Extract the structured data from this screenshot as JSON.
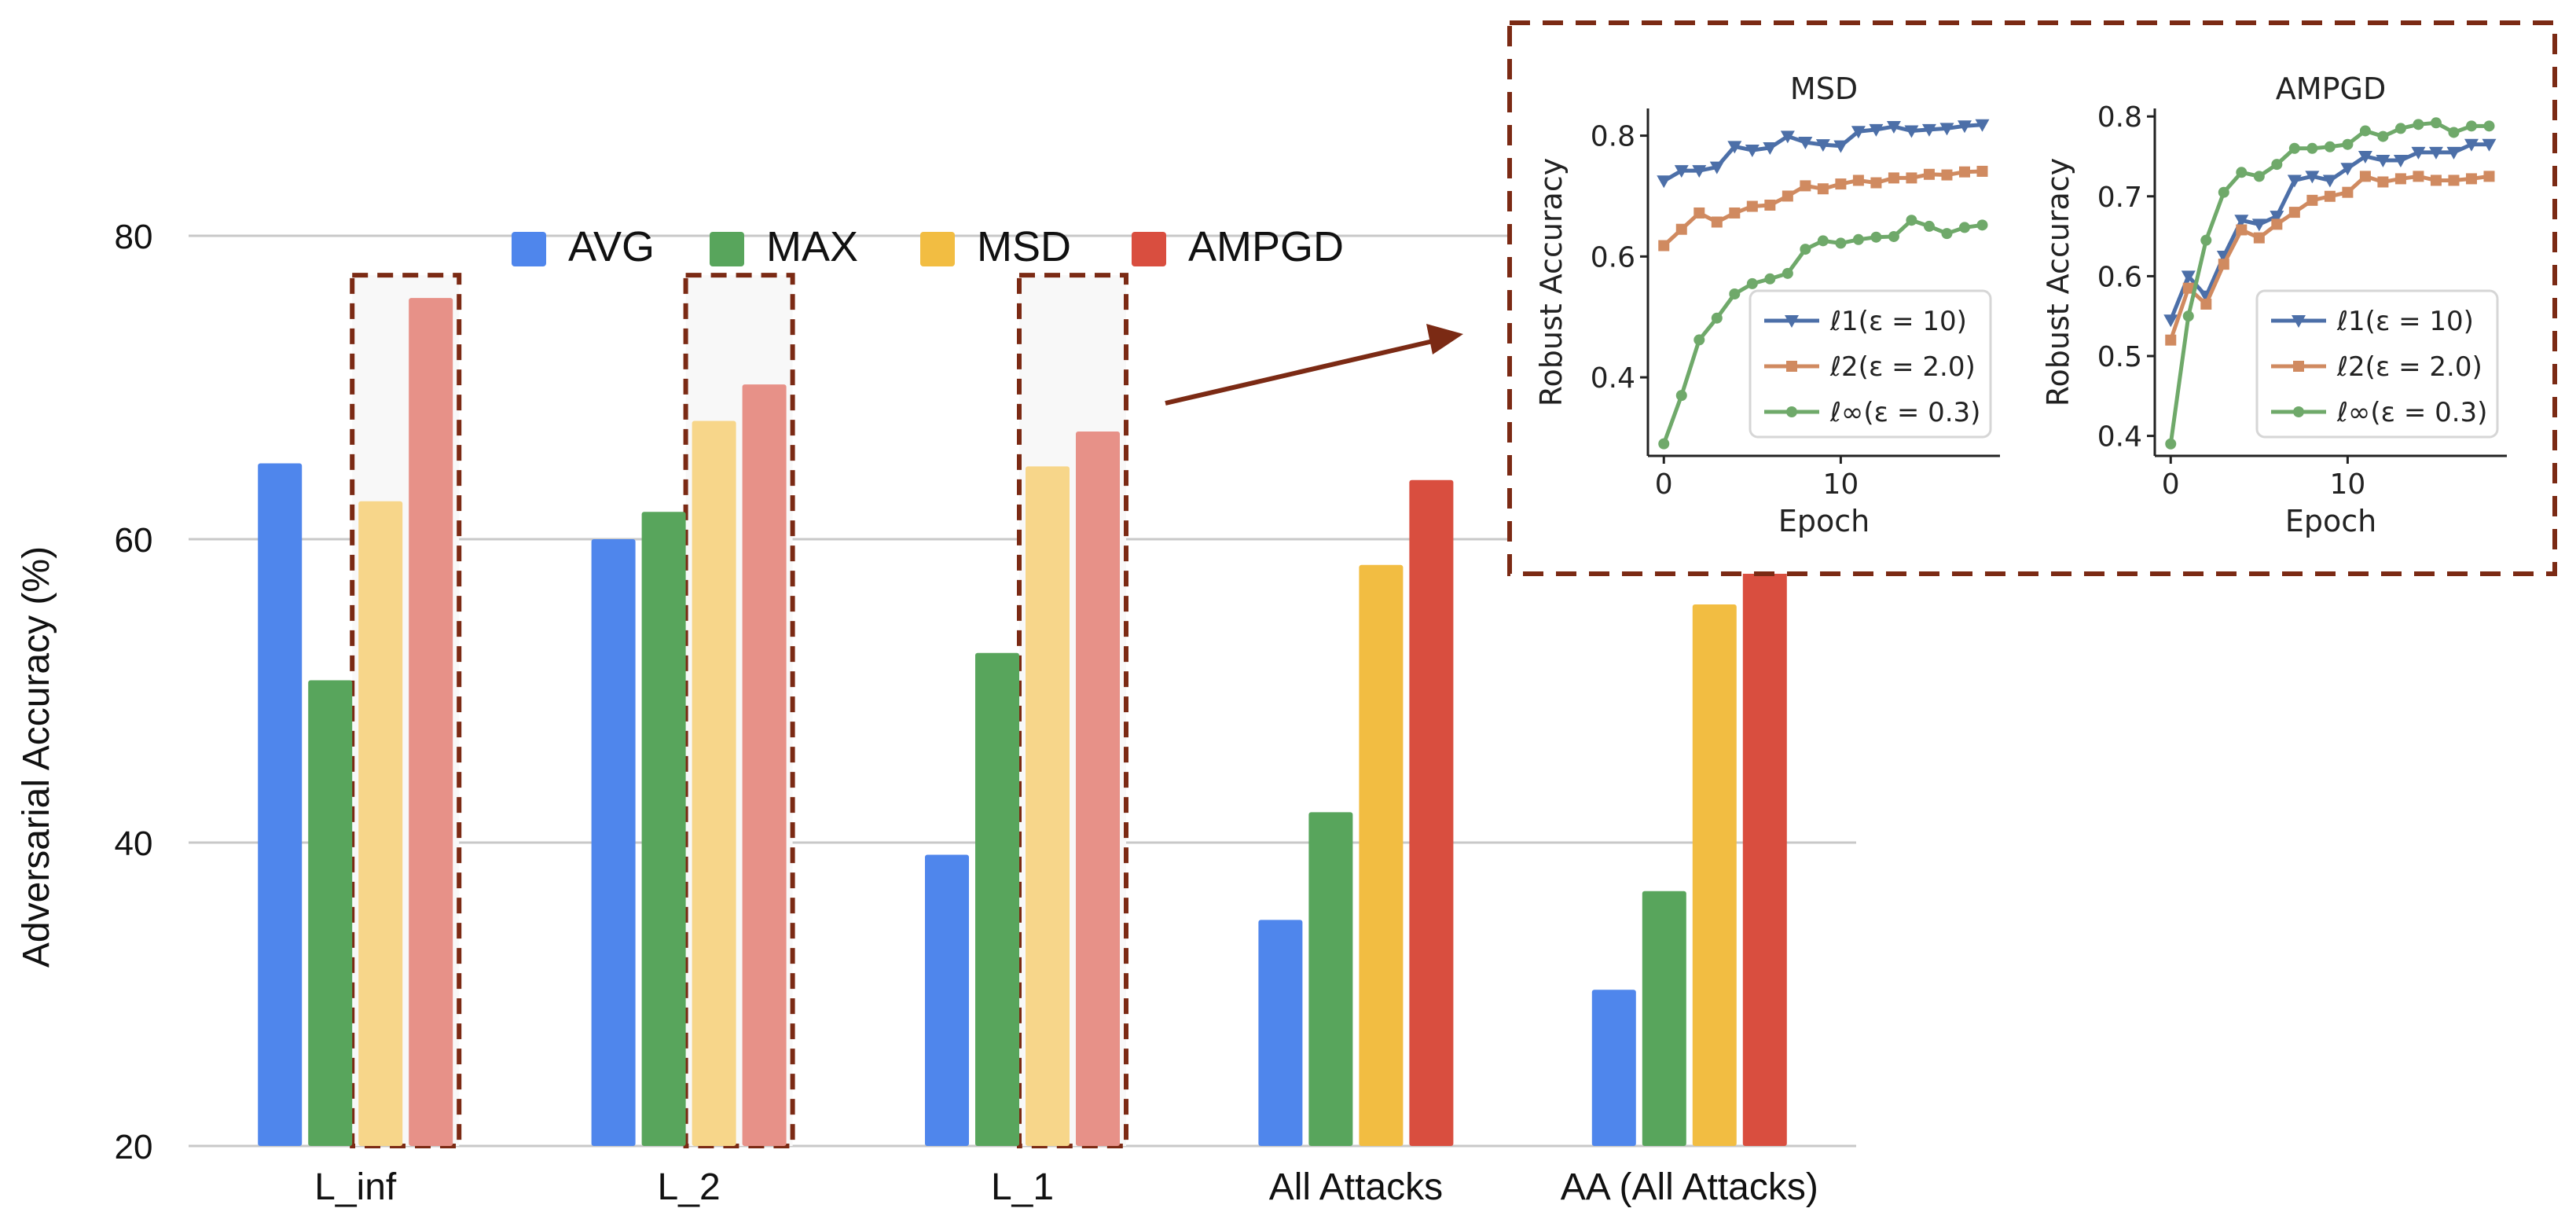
{
  "chart_data": [
    {
      "type": "bar",
      "title": "",
      "xlabel": "",
      "ylabel": "Adversarial Accuracy (%)",
      "ylim": [
        20,
        80
      ],
      "yticks": [
        20,
        40,
        60,
        80
      ],
      "grid": true,
      "legend_position": "top",
      "categories": [
        "L_inf",
        "L_2",
        "L_1",
        "All Attacks",
        "AA (All Attacks)"
      ],
      "series": [
        {
          "name": "AVG",
          "color": "#4F86EC",
          "values": [
            65.0,
            60.0,
            39.2,
            34.9,
            30.3
          ]
        },
        {
          "name": "MAX",
          "color": "#58A55C",
          "values": [
            50.7,
            61.8,
            52.5,
            42.0,
            36.8
          ]
        },
        {
          "name": "MSD",
          "color": "#F2BD42",
          "values": [
            62.5,
            67.8,
            64.8,
            58.3,
            55.7
          ]
        },
        {
          "name": "AMPGD",
          "color": "#D94E3F",
          "values": [
            75.9,
            70.2,
            67.1,
            63.9,
            59.1
          ]
        }
      ],
      "highlighted_categories": [
        "L_inf",
        "L_2",
        "L_1"
      ],
      "highlighted_series": [
        "MSD",
        "AMPGD"
      ],
      "highlight_color": "#7B2A14"
    },
    {
      "type": "line",
      "title": "MSD",
      "xlabel": "Epoch",
      "ylabel": "Robust Accuracy",
      "xlim": [
        -0.9,
        19
      ],
      "ylim": [
        0.27,
        0.845
      ],
      "xticks": [
        0,
        10
      ],
      "yticks": [
        0.4,
        0.6,
        0.8
      ],
      "yticklabels": [
        "0.4",
        "0.6",
        "0.8"
      ],
      "legend_position": "lower right",
      "x": [
        0,
        1,
        2,
        3,
        4,
        5,
        6,
        7,
        8,
        9,
        10,
        11,
        12,
        13,
        14,
        15,
        16,
        17,
        18
      ],
      "series": [
        {
          "name": "ℓ1(ε = 10)",
          "color": "#4C6FA8",
          "marker": "triangle-down",
          "values": [
            0.725,
            0.742,
            0.742,
            0.748,
            0.782,
            0.776,
            0.78,
            0.799,
            0.789,
            0.785,
            0.783,
            0.807,
            0.81,
            0.815,
            0.808,
            0.81,
            0.812,
            0.816,
            0.818
          ]
        },
        {
          "name": "ℓ2(ε = 2.0)",
          "color": "#D08A60",
          "marker": "square",
          "values": [
            0.618,
            0.645,
            0.672,
            0.657,
            0.672,
            0.683,
            0.685,
            0.7,
            0.717,
            0.712,
            0.72,
            0.726,
            0.722,
            0.73,
            0.73,
            0.736,
            0.735,
            0.74,
            0.741
          ]
        },
        {
          "name": "ℓ∞(ε = 0.3)",
          "color": "#6FA96A",
          "marker": "circle",
          "values": [
            0.29,
            0.37,
            0.462,
            0.498,
            0.538,
            0.555,
            0.563,
            0.572,
            0.612,
            0.626,
            0.622,
            0.628,
            0.632,
            0.633,
            0.66,
            0.65,
            0.638,
            0.648,
            0.652
          ]
        }
      ]
    },
    {
      "type": "line",
      "title": "AMPGD",
      "xlabel": "Epoch",
      "ylabel": "Robust Accuracy",
      "xlim": [
        -0.9,
        19
      ],
      "ylim": [
        0.375,
        0.81
      ],
      "xticks": [
        0,
        10
      ],
      "yticks": [
        0.4,
        0.5,
        0.6,
        0.7,
        0.8
      ],
      "yticklabels": [
        "0.4",
        "0.5",
        "0.6",
        "0.7",
        "0.8"
      ],
      "legend_position": "lower right",
      "x": [
        0,
        1,
        2,
        3,
        4,
        5,
        6,
        7,
        8,
        9,
        10,
        11,
        12,
        13,
        14,
        15,
        16,
        17,
        18
      ],
      "series": [
        {
          "name": "ℓ1(ε = 10)",
          "color": "#4C6FA8",
          "marker": "triangle-down",
          "values": [
            0.545,
            0.6,
            0.575,
            0.625,
            0.67,
            0.665,
            0.675,
            0.72,
            0.725,
            0.72,
            0.735,
            0.75,
            0.745,
            0.745,
            0.755,
            0.755,
            0.755,
            0.765,
            0.765
          ]
        },
        {
          "name": "ℓ2(ε = 2.0)",
          "color": "#D08A60",
          "marker": "square",
          "values": [
            0.52,
            0.585,
            0.565,
            0.615,
            0.658,
            0.648,
            0.665,
            0.68,
            0.695,
            0.7,
            0.705,
            0.725,
            0.718,
            0.722,
            0.725,
            0.72,
            0.72,
            0.722,
            0.725
          ]
        },
        {
          "name": "ℓ∞(ε = 0.3)",
          "color": "#6FA96A",
          "marker": "circle",
          "values": [
            0.39,
            0.55,
            0.645,
            0.705,
            0.73,
            0.725,
            0.74,
            0.76,
            0.76,
            0.762,
            0.765,
            0.782,
            0.775,
            0.785,
            0.79,
            0.792,
            0.78,
            0.788,
            0.788
          ]
        }
      ]
    }
  ]
}
